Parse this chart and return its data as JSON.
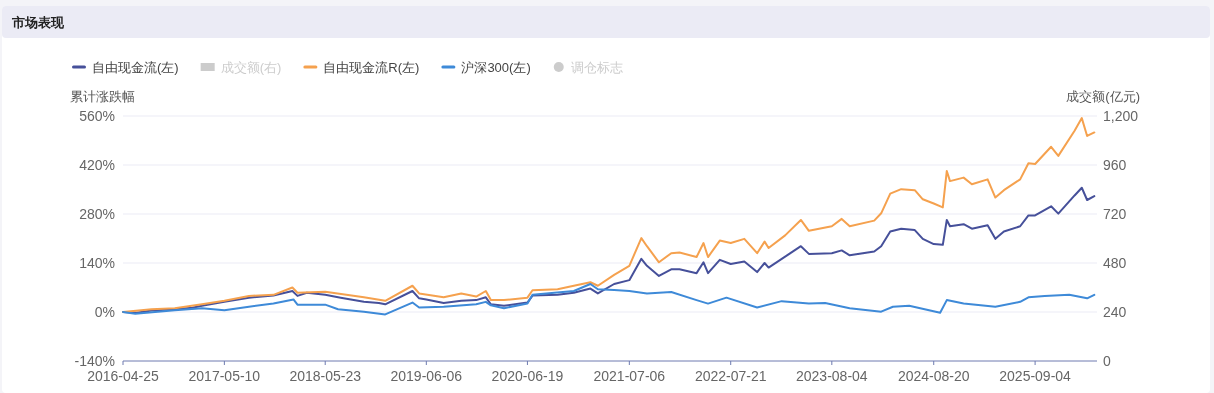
{
  "chart_data": {
    "type": "line",
    "title": "市场表现",
    "ylabel": "累计涨跌幅",
    "y2label": "成交额(亿元)",
    "xlim": [
      "2016-04-25",
      "2026-04-24"
    ],
    "xticks": [
      "2016-04-25",
      "2017-05-10",
      "2018-05-23",
      "2019-06-06",
      "2020-06-19",
      "2021-07-06",
      "2022-07-21",
      "2023-08-04",
      "2024-08-20",
      "2025-09-04"
    ],
    "ylim": [
      -140,
      560
    ],
    "yticks": [
      {
        "value": -140,
        "label": "-140%"
      },
      {
        "value": 0,
        "label": "0%"
      },
      {
        "value": 140,
        "label": "140%"
      },
      {
        "value": 280,
        "label": "280%"
      },
      {
        "value": 420,
        "label": "420%"
      },
      {
        "value": 560,
        "label": "560%"
      }
    ],
    "y2lim": [
      0,
      1200
    ],
    "y2ticks": [
      0,
      240,
      480,
      720,
      960,
      {
        "value": 1200,
        "label": "1,200"
      }
    ],
    "grid": "y",
    "legend": "top",
    "marker": "none",
    "line_style": "solid",
    "series": [
      {
        "name": "自由现金流(左)",
        "color": "#46509a",
        "x": [
          "2016-04-25",
          "2016-06-15",
          "2016-08-10",
          "2016-11-05",
          "2017-01-10",
          "2017-02-15",
          "2017-05-10",
          "2017-08-10",
          "2017-11-10",
          "2018-01-20",
          "2018-02-08",
          "2018-03-15",
          "2018-05-23",
          "2018-07-20",
          "2018-10-15",
          "2018-12-10",
          "2019-01-03",
          "2019-04-15",
          "2019-05-10",
          "2019-06-06",
          "2019-08-10",
          "2019-10-15",
          "2019-12-10",
          "2020-01-15",
          "2020-02-03",
          "2020-03-23",
          "2020-06-19",
          "2020-07-08",
          "2020-10-10",
          "2020-12-10",
          "2021-02-10",
          "2021-03-10",
          "2021-05-10",
          "2021-07-06",
          "2021-08-20",
          "2021-09-10",
          "2021-10-25",
          "2021-12-10",
          "2022-01-10",
          "2022-03-15",
          "2022-04-10",
          "2022-04-27",
          "2022-06-10",
          "2022-07-21",
          "2022-09-10",
          "2022-10-28",
          "2022-11-25",
          "2022-12-10",
          "2023-02-10",
          "2023-04-10",
          "2023-05-10",
          "2023-08-04",
          "2023-09-10",
          "2023-10-10",
          "2024-01-10",
          "2024-02-05",
          "2024-03-10",
          "2024-04-20",
          "2024-06-10",
          "2024-07-10",
          "2024-08-20",
          "2024-09-23",
          "2024-10-08",
          "2024-10-20",
          "2024-12-10",
          "2025-01-10",
          "2025-03-10",
          "2025-04-08",
          "2025-05-10",
          "2025-07-10",
          "2025-08-10",
          "2025-09-04",
          "2025-11-03",
          "2025-11-30",
          "2026-01-30",
          "2026-02-26",
          "2026-03-18",
          "2026-04-14"
        ],
        "values": [
          0,
          -2,
          4,
          8,
          12,
          18,
          29,
          41,
          47,
          60,
          46,
          55,
          49,
          41,
          29,
          26,
          22,
          60,
          39,
          36,
          26,
          32,
          34,
          42,
          22,
          18,
          27,
          47,
          49,
          55,
          67,
          53,
          80,
          91,
          152,
          132,
          103,
          122,
          122,
          111,
          142,
          111,
          149,
          137,
          144,
          114,
          140,
          127,
          158,
          188,
          166,
          168,
          176,
          162,
          173,
          188,
          230,
          238,
          234,
          209,
          194,
          192,
          263,
          245,
          251,
          238,
          248,
          209,
          230,
          245,
          276,
          276,
          302,
          281,
          333,
          355,
          320,
          331
        ]
      },
      {
        "name": "成交额(右)",
        "type": "bar",
        "color": "#cccccc"
      },
      {
        "name": "自由现金流R(左)",
        "color": "#f5a14e",
        "x": [
          "2016-04-25",
          "2016-08-10",
          "2016-11-05",
          "2017-02-15",
          "2017-05-10",
          "2017-08-10",
          "2017-11-10",
          "2018-01-20",
          "2018-02-08",
          "2018-05-23",
          "2018-10-15",
          "2019-01-03",
          "2019-04-15",
          "2019-05-10",
          "2019-08-10",
          "2019-10-15",
          "2019-12-10",
          "2020-01-15",
          "2020-02-03",
          "2020-03-23",
          "2020-06-19",
          "2020-07-08",
          "2020-10-10",
          "2020-12-10",
          "2021-02-10",
          "2021-03-10",
          "2021-05-10",
          "2021-07-06",
          "2021-08-20",
          "2021-09-10",
          "2021-10-25",
          "2021-12-10",
          "2022-01-10",
          "2022-03-15",
          "2022-04-10",
          "2022-04-27",
          "2022-06-10",
          "2022-07-21",
          "2022-09-10",
          "2022-10-28",
          "2022-11-25",
          "2022-12-10",
          "2023-02-10",
          "2023-04-10",
          "2023-05-10",
          "2023-08-04",
          "2023-09-10",
          "2023-10-10",
          "2024-01-10",
          "2024-02-05",
          "2024-03-10",
          "2024-04-20",
          "2024-06-10",
          "2024-07-10",
          "2024-08-20",
          "2024-09-23",
          "2024-10-08",
          "2024-10-20",
          "2024-12-10",
          "2025-01-10",
          "2025-03-10",
          "2025-04-08",
          "2025-05-10",
          "2025-07-10",
          "2025-08-10",
          "2025-09-04",
          "2025-11-03",
          "2025-11-30",
          "2026-01-30",
          "2026-02-26",
          "2026-03-18",
          "2026-04-14"
        ],
        "values": [
          0,
          8,
          11,
          22,
          32,
          46,
          49,
          70,
          55,
          58,
          42,
          32,
          75,
          53,
          42,
          53,
          44,
          60,
          34,
          34,
          41,
          62,
          65,
          75,
          85,
          75,
          106,
          132,
          211,
          188,
          142,
          168,
          170,
          157,
          197,
          157,
          204,
          197,
          209,
          168,
          201,
          183,
          219,
          263,
          232,
          245,
          266,
          245,
          261,
          282,
          338,
          351,
          348,
          322,
          310,
          299,
          403,
          374,
          384,
          365,
          379,
          327,
          348,
          379,
          425,
          423,
          472,
          446,
          518,
          554,
          503,
          513
        ]
      },
      {
        "name": "沪深300(左)",
        "color": "#3e8ad8",
        "x": [
          "2016-04-25",
          "2016-06-10",
          "2016-11-05",
          "2017-02-15",
          "2017-05-10",
          "2017-08-10",
          "2017-11-10",
          "2018-01-24",
          "2018-02-08",
          "2018-05-23",
          "2018-07-10",
          "2018-10-15",
          "2019-01-03",
          "2019-04-15",
          "2019-05-10",
          "2019-08-10",
          "2019-12-10",
          "2020-01-15",
          "2020-02-03",
          "2020-03-23",
          "2020-06-19",
          "2020-07-08",
          "2020-12-10",
          "2021-02-10",
          "2021-03-10",
          "2021-05-10",
          "2021-07-06",
          "2021-09-10",
          "2021-12-10",
          "2022-03-15",
          "2022-04-27",
          "2022-07-05",
          "2022-10-28",
          "2023-01-28",
          "2023-05-10",
          "2023-07-10",
          "2023-10-10",
          "2024-02-05",
          "2024-03-20",
          "2024-05-20",
          "2024-09-13",
          "2024-10-08",
          "2024-12-10",
          "2025-04-08",
          "2025-07-10",
          "2025-08-10",
          "2025-10-10",
          "2026-01-10",
          "2026-03-18",
          "2026-04-14"
        ],
        "values": [
          0,
          -5,
          5,
          11,
          5,
          15,
          24,
          36,
          21,
          21,
          8,
          1,
          -7,
          27,
          13,
          15,
          22,
          29,
          19,
          11,
          24,
          49,
          60,
          80,
          65,
          63,
          60,
          53,
          57,
          34,
          24,
          41,
          13,
          31,
          24,
          26,
          11,
          1,
          15,
          18,
          -2,
          34,
          24,
          15,
          29,
          42,
          46,
          49,
          39,
          49
        ]
      },
      {
        "name": "调仓标志",
        "type": "scatter",
        "marker": "circle",
        "color": "#cccccc"
      }
    ]
  }
}
